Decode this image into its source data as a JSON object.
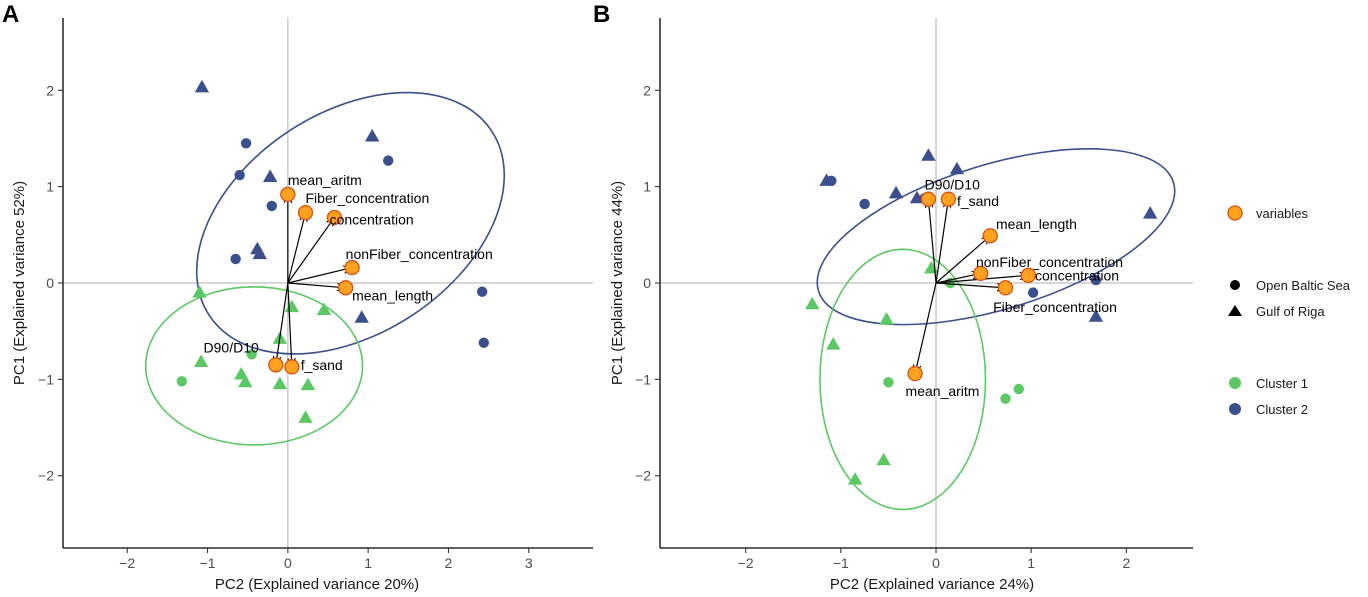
{
  "colors": {
    "cluster1": "#5cc864",
    "cluster2": "#3a4f8c",
    "variable_fill": "#ffa21f",
    "variable_stroke": "#d94f14",
    "reference_line": "#bebebe"
  },
  "legend": {
    "variables_label": "variables",
    "open_baltic_label": "Open Baltic Sea",
    "gulf_riga_label": "Gulf of Riga",
    "cluster1_label": "Cluster 1",
    "cluster2_label": "Cluster 2"
  },
  "chart_data": [
    {
      "type": "scatter",
      "panel_label": "A",
      "xlabel": "PC2 (Explained variance 20%)",
      "ylabel": "PC1 (Explained variance 52%)",
      "xlim": [
        -2.8,
        3.8
      ],
      "ylim": [
        -2.75,
        2.75
      ],
      "xticks": [
        "−2",
        "−1",
        "0",
        "1",
        "2",
        "3"
      ],
      "xtick_values": [
        -2,
        -1,
        0,
        1,
        2,
        3
      ],
      "yticks": [
        "−2",
        "−1",
        "0",
        "1",
        "2"
      ],
      "ytick_values": [
        -2,
        -1,
        0,
        1,
        2
      ],
      "ellipses": [
        {
          "cluster": 2,
          "cx": 0.78,
          "cy": 0.62,
          "rx": 2.1,
          "ry": 1.15,
          "angle_deg": -33
        },
        {
          "cluster": 1,
          "cx": -0.42,
          "cy": -0.86,
          "rx": 1.35,
          "ry": 0.82,
          "angle_deg": 0
        }
      ],
      "points": [
        {
          "x": -1.07,
          "y": 2.03,
          "shape": "triangle",
          "cluster": 2
        },
        {
          "x": -0.52,
          "y": 1.45,
          "shape": "circle",
          "cluster": 2
        },
        {
          "x": -0.6,
          "y": 1.12,
          "shape": "circle",
          "cluster": 2
        },
        {
          "x": -0.22,
          "y": 1.1,
          "shape": "triangle",
          "cluster": 2
        },
        {
          "x": -0.2,
          "y": 0.8,
          "shape": "circle",
          "cluster": 2
        },
        {
          "x": -0.38,
          "y": 0.35,
          "shape": "triangle",
          "cluster": 2
        },
        {
          "x": -0.35,
          "y": 0.3,
          "shape": "triangle",
          "cluster": 2
        },
        {
          "x": -0.65,
          "y": 0.25,
          "shape": "circle",
          "cluster": 2
        },
        {
          "x": 1.05,
          "y": 1.52,
          "shape": "triangle",
          "cluster": 2
        },
        {
          "x": 1.25,
          "y": 1.27,
          "shape": "circle",
          "cluster": 2
        },
        {
          "x": 0.92,
          "y": -0.36,
          "shape": "triangle",
          "cluster": 2
        },
        {
          "x": 2.42,
          "y": -0.09,
          "shape": "circle",
          "cluster": 2
        },
        {
          "x": 2.44,
          "y": -0.62,
          "shape": "circle",
          "cluster": 2
        },
        {
          "x": -1.1,
          "y": -0.1,
          "shape": "triangle",
          "cluster": 1
        },
        {
          "x": 0.45,
          "y": -0.28,
          "shape": "triangle",
          "cluster": 1
        },
        {
          "x": 0.05,
          "y": -0.25,
          "shape": "triangle",
          "cluster": 1
        },
        {
          "x": -0.1,
          "y": -0.58,
          "shape": "triangle",
          "cluster": 1
        },
        {
          "x": -0.45,
          "y": -0.74,
          "shape": "circle",
          "cluster": 1
        },
        {
          "x": -1.08,
          "y": -0.82,
          "shape": "triangle",
          "cluster": 1
        },
        {
          "x": -0.58,
          "y": -0.95,
          "shape": "triangle",
          "cluster": 1
        },
        {
          "x": -0.53,
          "y": -1.03,
          "shape": "triangle",
          "cluster": 1
        },
        {
          "x": -0.1,
          "y": -1.05,
          "shape": "triangle",
          "cluster": 1
        },
        {
          "x": 0.25,
          "y": -1.06,
          "shape": "triangle",
          "cluster": 1
        },
        {
          "x": -1.32,
          "y": -1.02,
          "shape": "circle",
          "cluster": 1
        },
        {
          "x": 0.22,
          "y": -1.4,
          "shape": "triangle",
          "cluster": 1
        }
      ],
      "variables": [
        {
          "name": "mean_aritm",
          "x": 0.0,
          "y": 0.92,
          "lx": 0.0,
          "ly": 1.07,
          "anchor": "start"
        },
        {
          "name": "Fiber_concentration",
          "x": 0.22,
          "y": 0.73,
          "lx": 0.22,
          "ly": 0.88,
          "anchor": "start"
        },
        {
          "name": "concentration",
          "x": 0.58,
          "y": 0.68,
          "lx": 0.52,
          "ly": 0.66,
          "anchor": "start"
        },
        {
          "name": "nonFiber_concentration",
          "x": 0.8,
          "y": 0.16,
          "lx": 0.72,
          "ly": 0.3,
          "anchor": "start"
        },
        {
          "name": "mean_length",
          "x": 0.72,
          "y": -0.05,
          "lx": 0.8,
          "ly": -0.13,
          "anchor": "start"
        },
        {
          "name": "D90/D10",
          "x": -0.15,
          "y": -0.85,
          "lx": -1.05,
          "ly": -0.67,
          "anchor": "start"
        },
        {
          "name": "f_sand",
          "x": 0.05,
          "y": -0.87,
          "lx": 0.16,
          "ly": -0.85,
          "anchor": "start"
        }
      ]
    },
    {
      "type": "scatter",
      "panel_label": "B",
      "xlabel": "PC2 (Explained variance 24%)",
      "ylabel": "PC1 (Explained variance 44%)",
      "xlim": [
        -2.9,
        2.7
      ],
      "ylim": [
        -2.75,
        2.75
      ],
      "xticks": [
        "−2",
        "−1",
        "0",
        "1",
        "2"
      ],
      "xtick_values": [
        -2,
        -1,
        0,
        1,
        2
      ],
      "yticks": [
        "−2",
        "−1",
        "0",
        "1",
        "2"
      ],
      "ytick_values": [
        -2,
        -1,
        0,
        1,
        2
      ],
      "ellipses": [
        {
          "cluster": 2,
          "cx": 0.63,
          "cy": 0.48,
          "rx": 1.95,
          "ry": 0.75,
          "angle_deg": -17
        },
        {
          "cluster": 1,
          "cx": -0.35,
          "cy": -1.0,
          "rx": 0.87,
          "ry": 1.35,
          "angle_deg": 0
        }
      ],
      "points": [
        {
          "x": -1.15,
          "y": 1.06,
          "shape": "triangle",
          "cluster": 2
        },
        {
          "x": -1.1,
          "y": 1.06,
          "shape": "circle",
          "cluster": 2
        },
        {
          "x": -0.75,
          "y": 0.82,
          "shape": "circle",
          "cluster": 2
        },
        {
          "x": -0.42,
          "y": 0.93,
          "shape": "triangle",
          "cluster": 2
        },
        {
          "x": -0.2,
          "y": 0.88,
          "shape": "triangle",
          "cluster": 2
        },
        {
          "x": -0.08,
          "y": 1.32,
          "shape": "triangle",
          "cluster": 2
        },
        {
          "x": 0.22,
          "y": 1.18,
          "shape": "triangle",
          "cluster": 2
        },
        {
          "x": -0.12,
          "y": 0.88,
          "shape": "circle",
          "cluster": 2
        },
        {
          "x": 2.25,
          "y": 0.72,
          "shape": "triangle",
          "cluster": 2
        },
        {
          "x": 1.02,
          "y": -0.1,
          "shape": "circle",
          "cluster": 2
        },
        {
          "x": 1.68,
          "y": 0.03,
          "shape": "circle",
          "cluster": 2
        },
        {
          "x": 1.68,
          "y": -0.35,
          "shape": "triangle",
          "cluster": 2
        },
        {
          "x": -0.05,
          "y": 0.15,
          "shape": "triangle",
          "cluster": 1
        },
        {
          "x": 0.15,
          "y": 0.0,
          "shape": "circle",
          "cluster": 1
        },
        {
          "x": -1.3,
          "y": -0.22,
          "shape": "triangle",
          "cluster": 1
        },
        {
          "x": -0.52,
          "y": -0.38,
          "shape": "triangle",
          "cluster": 1
        },
        {
          "x": -1.08,
          "y": -0.64,
          "shape": "triangle",
          "cluster": 1
        },
        {
          "x": -0.5,
          "y": -1.03,
          "shape": "circle",
          "cluster": 1
        },
        {
          "x": 0.87,
          "y": -1.1,
          "shape": "circle",
          "cluster": 1
        },
        {
          "x": 0.73,
          "y": -1.2,
          "shape": "circle",
          "cluster": 1
        },
        {
          "x": -0.55,
          "y": -1.84,
          "shape": "triangle",
          "cluster": 1
        },
        {
          "x": -0.85,
          "y": -2.04,
          "shape": "triangle",
          "cluster": 1
        }
      ],
      "variables": [
        {
          "name": "D90/D10",
          "x": -0.08,
          "y": 0.87,
          "lx": -0.12,
          "ly": 1.02,
          "anchor": "start"
        },
        {
          "name": "f_sand",
          "x": 0.13,
          "y": 0.87,
          "lx": 0.22,
          "ly": 0.85,
          "anchor": "start"
        },
        {
          "name": "mean_length",
          "x": 0.57,
          "y": 0.49,
          "lx": 0.63,
          "ly": 0.61,
          "anchor": "start"
        },
        {
          "name": "nonFiber_concentration",
          "x": 0.47,
          "y": 0.1,
          "lx": 0.42,
          "ly": 0.22,
          "anchor": "start"
        },
        {
          "name": "concentration",
          "x": 0.97,
          "y": 0.08,
          "lx": 1.04,
          "ly": 0.08,
          "anchor": "start"
        },
        {
          "name": "Fiber_concentration",
          "x": 0.73,
          "y": -0.05,
          "lx": 0.6,
          "ly": -0.25,
          "anchor": "start"
        },
        {
          "name": "mean_aritm",
          "x": -0.22,
          "y": -0.94,
          "lx": -0.32,
          "ly": -1.12,
          "anchor": "start"
        }
      ]
    }
  ]
}
